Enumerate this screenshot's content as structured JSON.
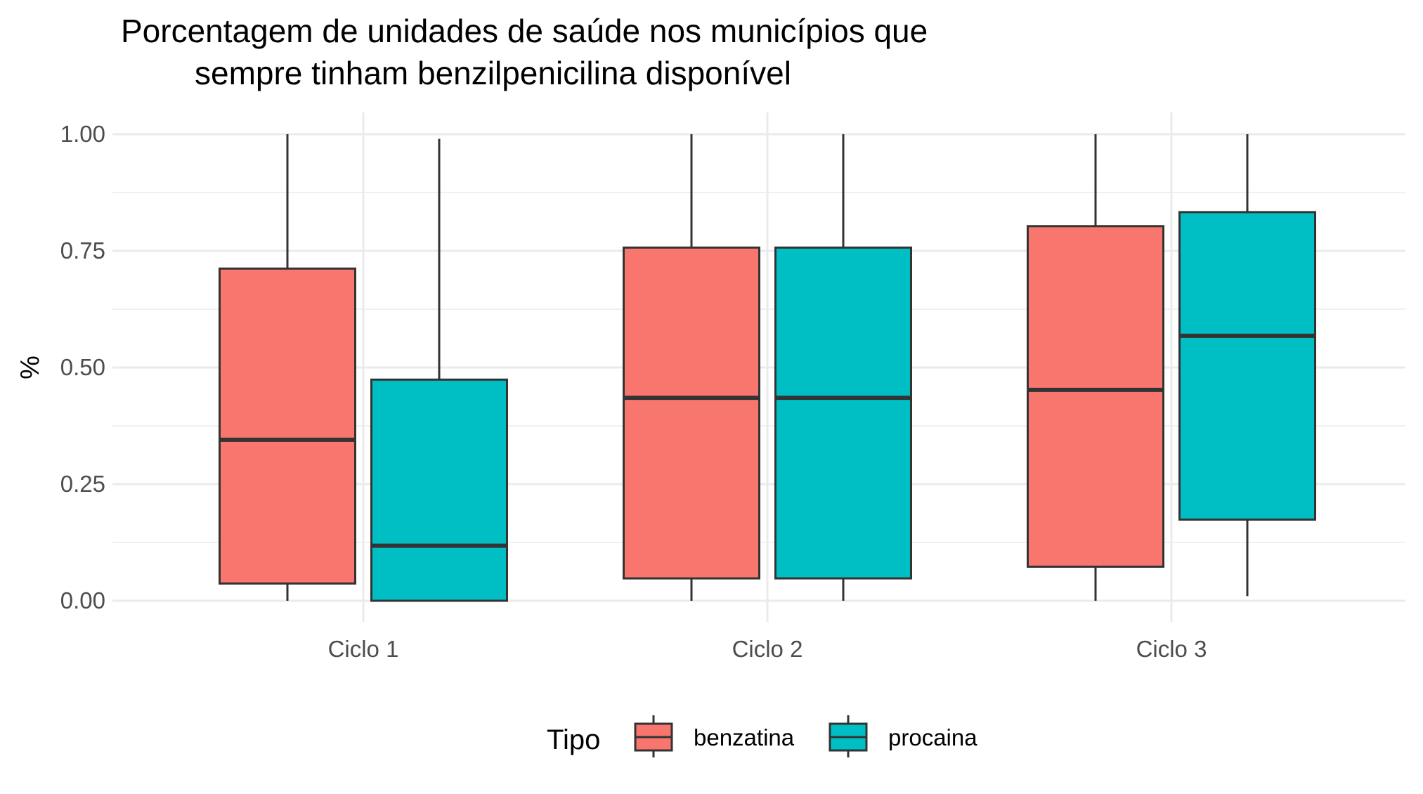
{
  "chart_data": {
    "type": "box",
    "title_lines": [
      "Porcentagem de unidades de saúde nos municípios que",
      "sempre tinham benzilpenicilina disponível"
    ],
    "xlabel": "",
    "ylabel": "%",
    "ylim": [
      0,
      1
    ],
    "y_ticks": [
      "0.00",
      "0.25",
      "0.50",
      "0.75",
      "1.00"
    ],
    "grid": true,
    "legend_position": "bottom",
    "legend_title": "Tipo",
    "categories": [
      "Ciclo 1",
      "Ciclo 2",
      "Ciclo 3"
    ],
    "series": [
      {
        "name": "benzatina",
        "color": "#F8766D",
        "boxes": [
          {
            "min": 0.0,
            "q1": 0.037,
            "median": 0.345,
            "q3": 0.712,
            "max": 1.0
          },
          {
            "min": 0.0,
            "q1": 0.048,
            "median": 0.435,
            "q3": 0.757,
            "max": 1.0
          },
          {
            "min": 0.0,
            "q1": 0.073,
            "median": 0.452,
            "q3": 0.803,
            "max": 1.0
          }
        ]
      },
      {
        "name": "procaina",
        "color": "#00BFC4",
        "boxes": [
          {
            "min": 0.0,
            "q1": 0.0,
            "median": 0.118,
            "q3": 0.474,
            "max": 0.99
          },
          {
            "min": 0.0,
            "q1": 0.048,
            "median": 0.435,
            "q3": 0.757,
            "max": 1.0
          },
          {
            "min": 0.01,
            "q1": 0.174,
            "median": 0.568,
            "q3": 0.833,
            "max": 1.0
          }
        ]
      }
    ]
  }
}
